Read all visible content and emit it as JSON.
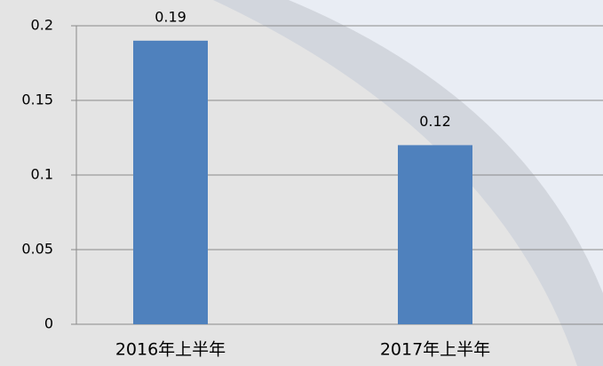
{
  "chart_data": {
    "type": "bar",
    "categories": [
      "2016年上半年",
      "2017年上半年"
    ],
    "values": [
      0.19,
      0.12
    ],
    "color": "#4f81bd",
    "ylim": [
      0,
      0.2
    ],
    "yticks": [
      0,
      0.05,
      0.1,
      0.15,
      0.2
    ],
    "grid": true
  }
}
